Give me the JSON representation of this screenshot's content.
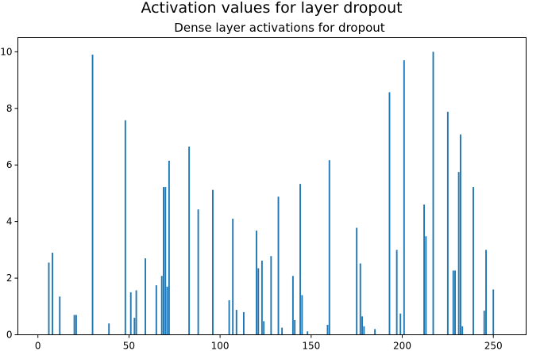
{
  "chart_data": {
    "type": "bar",
    "title": "Activation values for layer dropout",
    "subtitle": "Dense layer activations for dropout",
    "xlabel": "",
    "ylabel": "",
    "xlim": [
      -11,
      268
    ],
    "ylim": [
      0,
      10.5
    ],
    "xticks": [
      0,
      50,
      100,
      150,
      200,
      250
    ],
    "yticks": [
      0,
      2,
      4,
      6,
      8,
      10
    ],
    "grid": false,
    "bar_color": "#1f77b4",
    "x": [
      6,
      8,
      12,
      20,
      21,
      30,
      39,
      48,
      51,
      53,
      54,
      59,
      65,
      68,
      69,
      70,
      71,
      72,
      83,
      88,
      96,
      105,
      107,
      109,
      113,
      120,
      121,
      123,
      124,
      128,
      132,
      134,
      140,
      141,
      144,
      145,
      148,
      159,
      160,
      175,
      177,
      178,
      179,
      185,
      193,
      197,
      199,
      201,
      212,
      213,
      217,
      225,
      228,
      229,
      231,
      232,
      233,
      239,
      245,
      246,
      250
    ],
    "values": [
      2.55,
      2.9,
      1.35,
      0.7,
      0.7,
      9.9,
      0.4,
      7.58,
      1.5,
      0.6,
      1.57,
      2.7,
      1.75,
      2.08,
      5.22,
      5.22,
      1.7,
      6.15,
      6.65,
      4.43,
      5.12,
      1.22,
      4.1,
      0.88,
      0.8,
      3.68,
      2.35,
      2.62,
      0.48,
      2.78,
      4.88,
      0.25,
      2.08,
      0.52,
      5.33,
      1.4,
      0.12,
      0.35,
      6.17,
      3.78,
      2.52,
      0.65,
      0.3,
      0.2,
      8.57,
      3.0,
      0.75,
      9.7,
      4.6,
      3.48,
      10.0,
      7.88,
      2.27,
      2.27,
      5.75,
      7.08,
      0.3,
      5.22,
      0.85,
      3.0,
      1.6
    ]
  }
}
